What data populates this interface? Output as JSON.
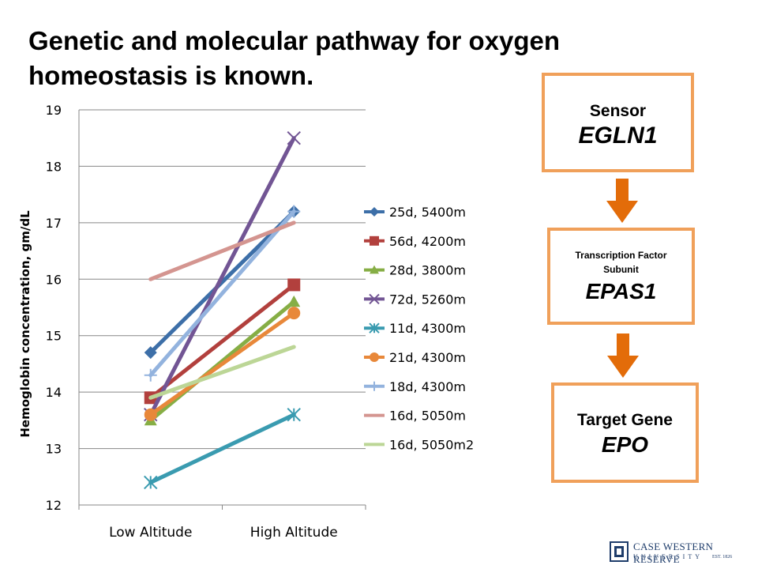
{
  "title": {
    "line1": "Genetic and molecular pathway for oxygen",
    "line2": "homeostasis is known."
  },
  "chart_data": {
    "type": "line",
    "ylabel": "Hemoglobin concentration, gm/dL",
    "xlabel": "",
    "categories": [
      "Low Altitude",
      "High Altitude"
    ],
    "ylim": [
      12,
      19
    ],
    "yticks": [
      "12",
      "13",
      "14",
      "15",
      "16",
      "17",
      "18",
      "19"
    ],
    "grid": true,
    "legend_position": "right",
    "series": [
      {
        "name": "25d, 5400m",
        "values": [
          14.7,
          17.2
        ],
        "color": "#3d6fa8",
        "marker": "diamond"
      },
      {
        "name": "56d, 4200m",
        "values": [
          13.9,
          15.9
        ],
        "color": "#b2403d",
        "marker": "square"
      },
      {
        "name": "28d, 3800m",
        "values": [
          13.5,
          15.6
        ],
        "color": "#86ae45",
        "marker": "triangle"
      },
      {
        "name": "72d, 5260m",
        "values": [
          13.6,
          18.5
        ],
        "color": "#725594",
        "marker": "x"
      },
      {
        "name": "11d, 4300m",
        "values": [
          12.4,
          13.6
        ],
        "color": "#3a9bb0",
        "marker": "star"
      },
      {
        "name": "21d, 4300m",
        "values": [
          13.6,
          15.4
        ],
        "color": "#e8883a",
        "marker": "circle"
      },
      {
        "name": "18d, 4300m",
        "values": [
          14.3,
          17.2
        ],
        "color": "#93b3de",
        "marker": "plus"
      },
      {
        "name": "16d, 5050m",
        "values": [
          16.0,
          17.0
        ],
        "color": "#d49590",
        "marker": "none"
      },
      {
        "name": "16d, 5050m2",
        "values": [
          13.9,
          14.8
        ],
        "color": "#bcd696",
        "marker": "none"
      }
    ]
  },
  "pathway": {
    "sensor": {
      "label": "Sensor",
      "gene": "EGLN1"
    },
    "transcription_factor": {
      "label_line1": "Transcription Factor",
      "label_line2": "Subunit",
      "gene": "EPAS1"
    },
    "target": {
      "label": "Target Gene",
      "gene": "EPO"
    },
    "box_border_color": "#f0a05a",
    "arrow_color": "#e36c09"
  },
  "logo": {
    "name_line": "CASE WESTERN RESERVE",
    "sub_line": "UNIVERSITY",
    "est": "EST. 1826",
    "color": "#1f3d6b"
  }
}
